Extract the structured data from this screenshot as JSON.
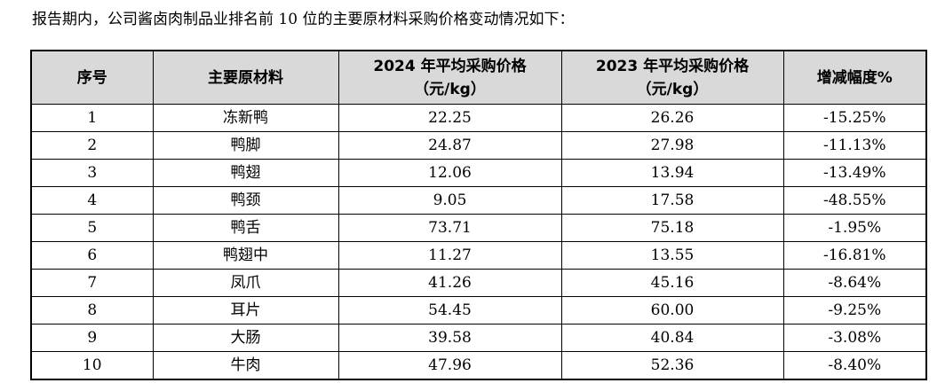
{
  "intro_text": "报告期内，公司酱卤肉制品业排名前 10 位的主要原材料采购价格变动情况如下：",
  "table": {
    "headers": {
      "index": "序号",
      "material": "主要原材料",
      "price_2024_line1": "2024 年平均采购价格",
      "price_2024_line2": "（元/kg）",
      "price_2023_line1": "2023 年平均采购价格",
      "price_2023_line2": "（元/kg）",
      "change": "增减幅度%"
    },
    "rows": [
      {
        "index": "1",
        "material": "冻新鸭",
        "price_2024": "22.25",
        "price_2023": "26.26",
        "change": "-15.25%"
      },
      {
        "index": "2",
        "material": "鸭脚",
        "price_2024": "24.87",
        "price_2023": "27.98",
        "change": "-11.13%"
      },
      {
        "index": "3",
        "material": "鸭翅",
        "price_2024": "12.06",
        "price_2023": "13.94",
        "change": "-13.49%"
      },
      {
        "index": "4",
        "material": "鸭颈",
        "price_2024": "9.05",
        "price_2023": "17.58",
        "change": "-48.55%"
      },
      {
        "index": "5",
        "material": "鸭舌",
        "price_2024": "73.71",
        "price_2023": "75.18",
        "change": "-1.95%"
      },
      {
        "index": "6",
        "material": "鸭翅中",
        "price_2024": "11.27",
        "price_2023": "13.55",
        "change": "-16.81%"
      },
      {
        "index": "7",
        "material": "凤爪",
        "price_2024": "41.26",
        "price_2023": "45.16",
        "change": "-8.64%"
      },
      {
        "index": "8",
        "material": "耳片",
        "price_2024": "54.45",
        "price_2023": "60.00",
        "change": "-9.25%"
      },
      {
        "index": "9",
        "material": "大肠",
        "price_2024": "39.58",
        "price_2023": "40.84",
        "change": "-3.08%"
      },
      {
        "index": "10",
        "material": "牛肉",
        "price_2024": "47.96",
        "price_2023": "52.36",
        "change": "-8.40%"
      }
    ]
  }
}
